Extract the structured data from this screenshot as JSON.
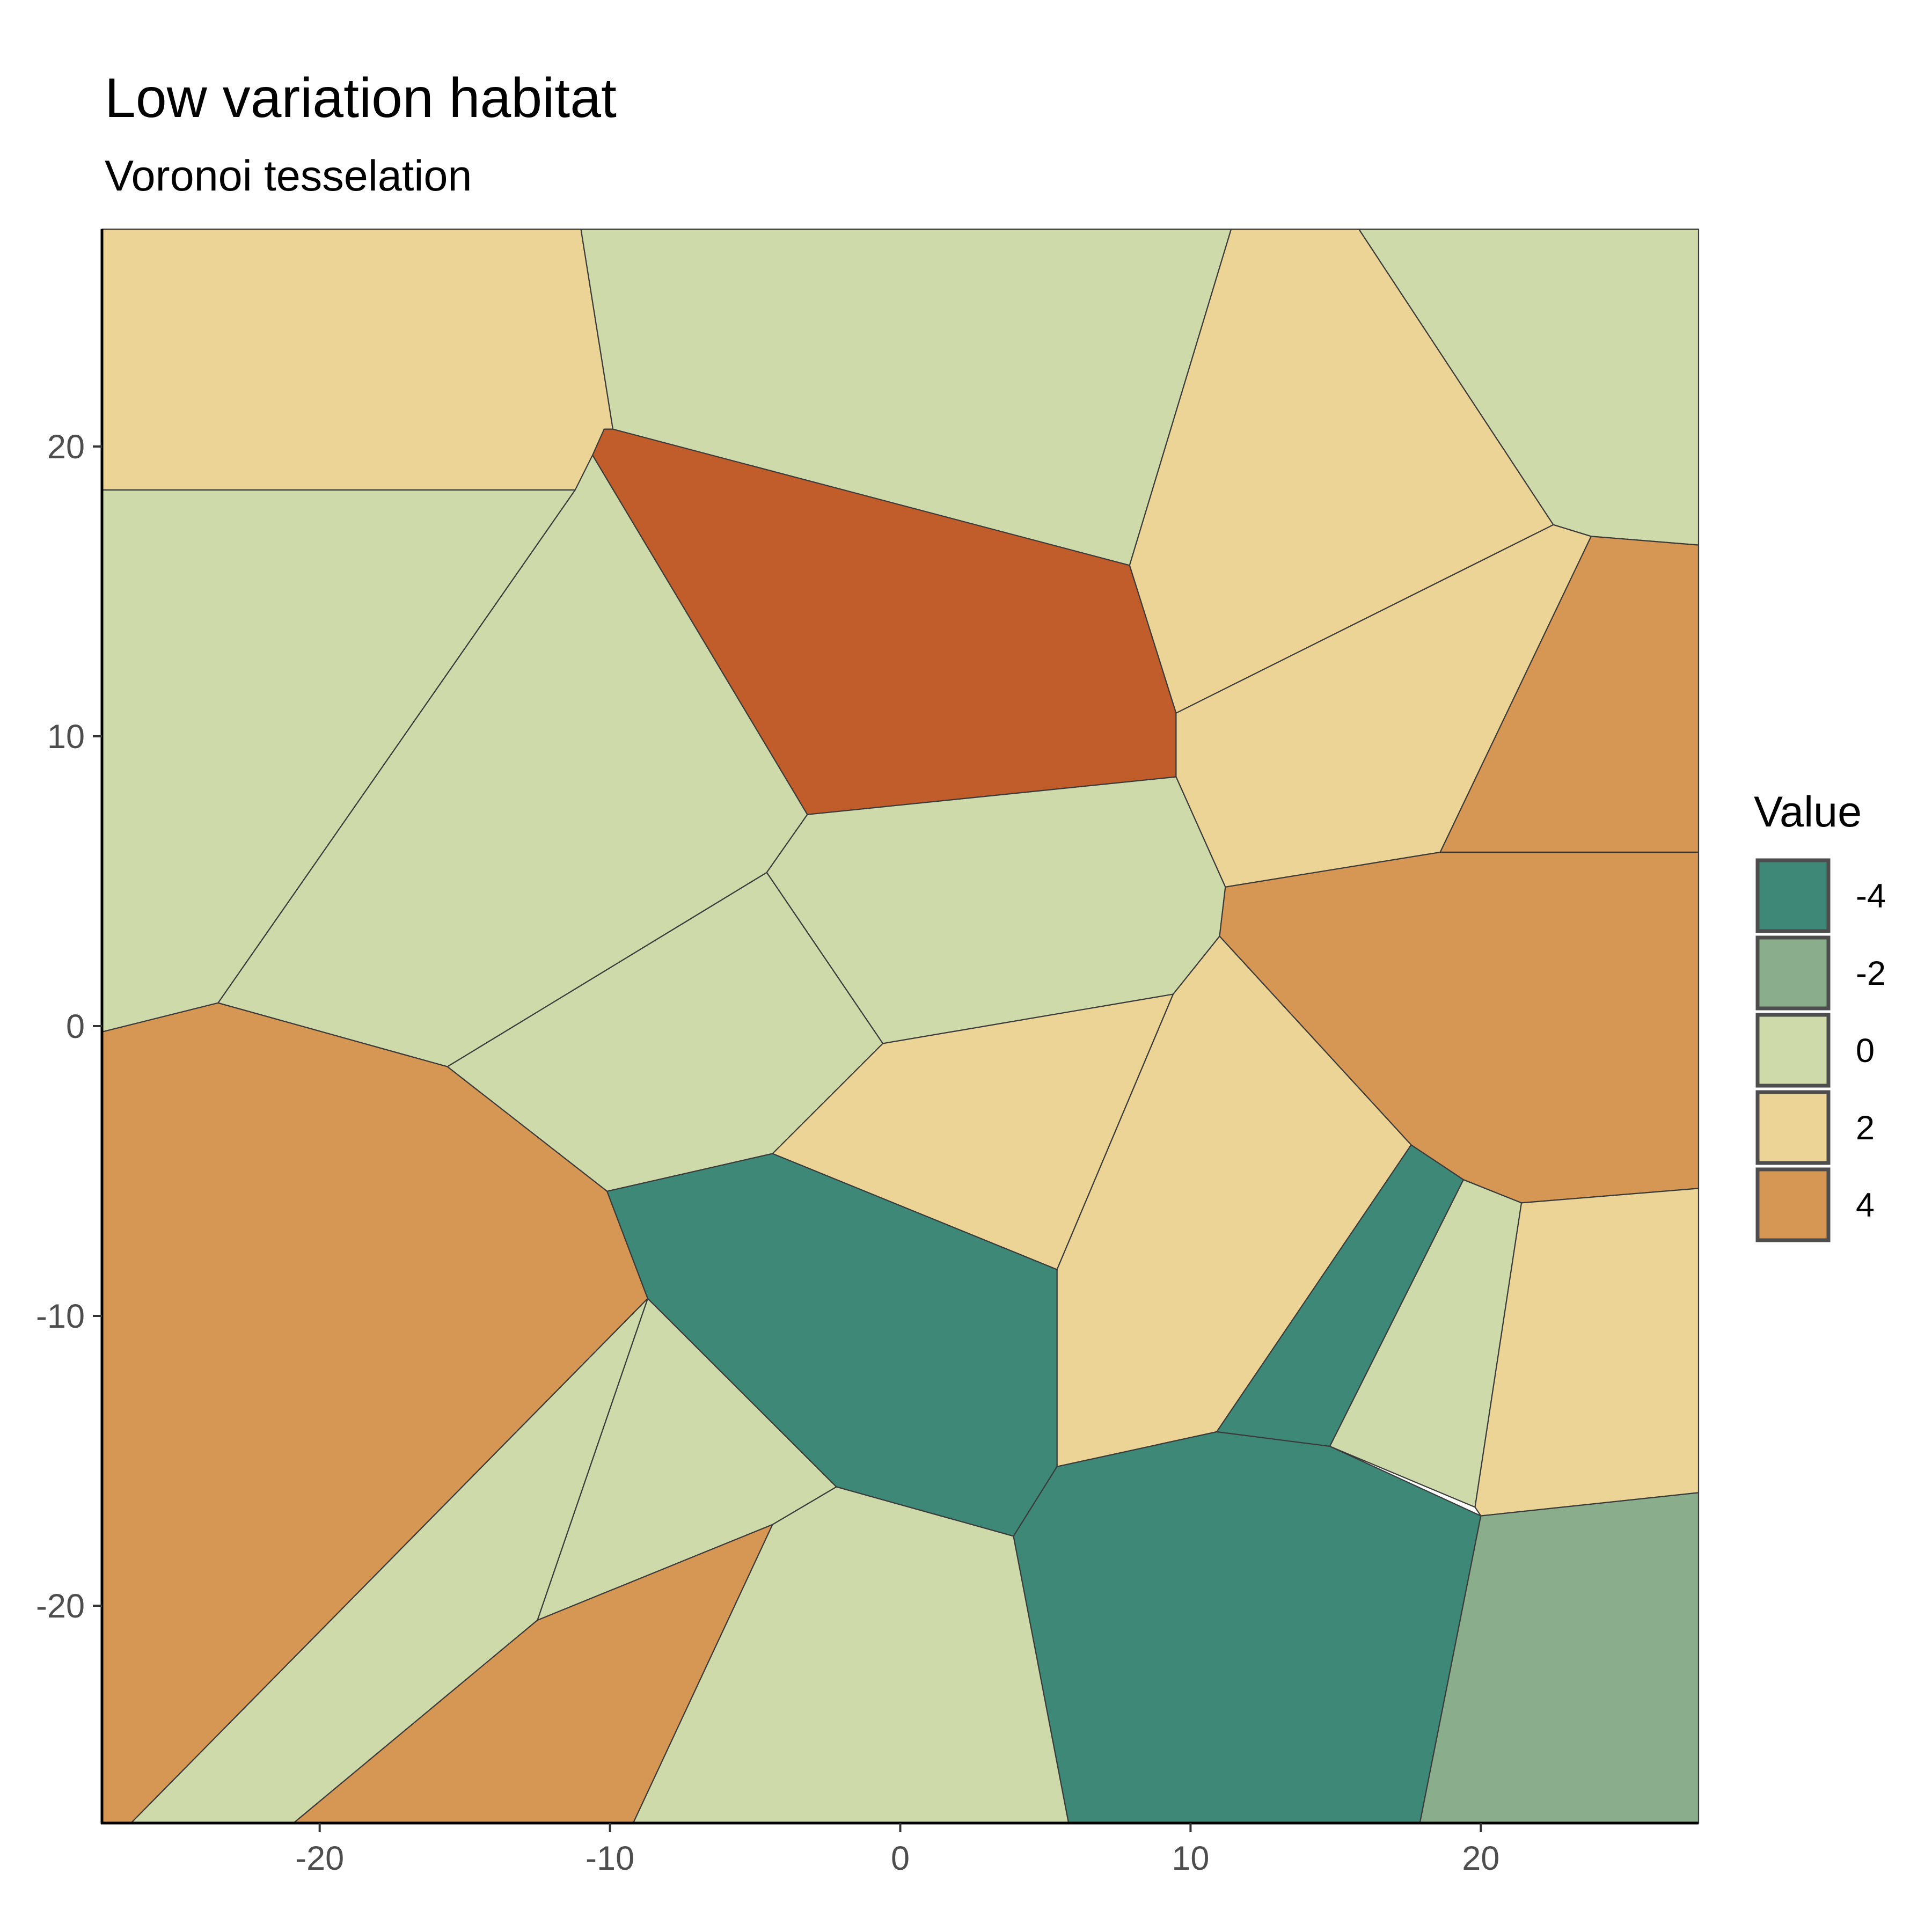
{
  "chart_data": {
    "type": "heatmap",
    "title": "Low variation habitat",
    "subtitle": "Voronoi tesselation",
    "xlim": [
      -27.5,
      27.5
    ],
    "ylim": [
      -27.5,
      27.5
    ],
    "x_ticks": [
      -20,
      -10,
      0,
      10,
      20
    ],
    "y_ticks": [
      -20,
      -10,
      0,
      10,
      20
    ],
    "x_tick_labels": [
      "-20",
      "-10",
      "0",
      "10",
      "20"
    ],
    "y_tick_labels": [
      "-20",
      "-10",
      "0",
      "10",
      "20"
    ],
    "grid": false,
    "legend": {
      "title": "Value",
      "position": "right",
      "entries": [
        {
          "value": -4,
          "label": "-4",
          "color": "#3e8878"
        },
        {
          "value": -2,
          "label": "-2",
          "color": "#8aad8c"
        },
        {
          "value": 0,
          "label": "0",
          "color": "#cfdaab"
        },
        {
          "value": 2,
          "label": "2",
          "color": "#ebd495"
        },
        {
          "value": 4,
          "label": "4",
          "color": "#d69654"
        }
      ]
    },
    "extra_colors": {
      "dark_red": "#c15d2b"
    },
    "cells": [
      {
        "value": 2,
        "color": "#ebd495",
        "points": [
          [
            -27.5,
            27.5
          ],
          [
            -11,
            27.5
          ],
          [
            -9.9,
            20.6
          ],
          [
            -11.2,
            18.5
          ],
          [
            -27.5,
            18.5
          ]
        ]
      },
      {
        "value": 0,
        "color": "#cfdaab",
        "points": [
          [
            -11,
            27.5
          ],
          [
            11.4,
            27.5
          ],
          [
            7.9,
            15.9
          ],
          [
            -10.2,
            20.6
          ],
          [
            -9.9,
            20.6
          ]
        ]
      },
      {
        "value": 2,
        "color": "#ebd495",
        "points": [
          [
            11.4,
            27.5
          ],
          [
            15.8,
            27.5
          ],
          [
            22.5,
            17.3
          ],
          [
            9.5,
            10.8
          ],
          [
            7.9,
            15.9
          ]
        ]
      },
      {
        "value": 0,
        "color": "#cfdaab",
        "points": [
          [
            15.8,
            27.5
          ],
          [
            27.5,
            27.5
          ],
          [
            27.5,
            16.6
          ],
          [
            23.8,
            16.9
          ],
          [
            22.5,
            17.3
          ]
        ]
      },
      {
        "value": 4,
        "color": "#c15d2b",
        "points": [
          [
            -9.9,
            20.6
          ],
          [
            -10.2,
            20.6
          ],
          [
            -10.6,
            19.7
          ],
          [
            -3.2,
            7.3
          ],
          [
            9.5,
            8.6
          ],
          [
            9.5,
            10.8
          ],
          [
            7.9,
            15.9
          ]
        ]
      },
      {
        "value": 0,
        "color": "#cfdaab",
        "points": [
          [
            -27.5,
            18.5
          ],
          [
            -11.2,
            18.5
          ],
          [
            -23.5,
            0.8
          ],
          [
            -27.5,
            -0.2
          ]
        ]
      },
      {
        "value": 0,
        "color": "#cfdaab",
        "points": [
          [
            -11.2,
            18.5
          ],
          [
            -10.6,
            19.7
          ],
          [
            -3.2,
            7.3
          ],
          [
            -4.6,
            5.3
          ],
          [
            -15.6,
            -1.4
          ],
          [
            -23.5,
            0.8
          ]
        ]
      },
      {
        "value": 2,
        "color": "#ebd495",
        "points": [
          [
            9.5,
            10.8
          ],
          [
            22.5,
            17.3
          ],
          [
            23.8,
            16.9
          ],
          [
            18.6,
            6.0
          ],
          [
            11.2,
            4.8
          ],
          [
            9.5,
            8.6
          ]
        ]
      },
      {
        "value": 4,
        "color": "#d69654",
        "points": [
          [
            23.8,
            16.9
          ],
          [
            27.5,
            16.6
          ],
          [
            27.5,
            6.0
          ],
          [
            18.6,
            6.0
          ]
        ]
      },
      {
        "value": 0,
        "color": "#cfdaab",
        "points": [
          [
            -3.2,
            7.3
          ],
          [
            9.5,
            8.6
          ],
          [
            11.2,
            4.8
          ],
          [
            11.0,
            3.1
          ],
          [
            9.4,
            1.1
          ],
          [
            -0.6,
            -0.6
          ],
          [
            -4.6,
            5.3
          ]
        ]
      },
      {
        "value": 0,
        "color": "#cfdaab",
        "points": [
          [
            -4.6,
            5.3
          ],
          [
            -0.6,
            -0.6
          ],
          [
            -4.4,
            -4.4
          ],
          [
            -10.1,
            -5.7
          ],
          [
            -15.6,
            -1.4
          ]
        ]
      },
      {
        "value": 4,
        "color": "#d69654",
        "points": [
          [
            11.2,
            4.8
          ],
          [
            18.6,
            6.0
          ],
          [
            27.5,
            6.0
          ],
          [
            27.5,
            -5.6
          ],
          [
            21.4,
            -6.1
          ],
          [
            19.4,
            -5.3
          ],
          [
            17.6,
            -4.1
          ],
          [
            11.0,
            3.1
          ]
        ]
      },
      {
        "value": 4,
        "color": "#d69654",
        "points": [
          [
            -27.5,
            -0.2
          ],
          [
            -23.5,
            0.8
          ],
          [
            -15.6,
            -1.4
          ],
          [
            -10.1,
            -5.7
          ],
          [
            -8.7,
            -9.4
          ],
          [
            -26.5,
            -27.5
          ],
          [
            -27.5,
            -27.5
          ]
        ]
      },
      {
        "value": 2,
        "color": "#ebd495",
        "points": [
          [
            -0.6,
            -0.6
          ],
          [
            9.4,
            1.1
          ],
          [
            5.4,
            -8.4
          ],
          [
            -4.4,
            -4.4
          ]
        ]
      },
      {
        "value": 2,
        "color": "#ebd495",
        "points": [
          [
            9.4,
            1.1
          ],
          [
            11.0,
            3.1
          ],
          [
            17.6,
            -4.1
          ],
          [
            10.9,
            -14.0
          ],
          [
            5.4,
            -15.2
          ],
          [
            5.4,
            -8.4
          ]
        ]
      },
      {
        "value": -4,
        "color": "#3e8878",
        "points": [
          [
            -10.1,
            -5.7
          ],
          [
            -4.4,
            -4.4
          ],
          [
            5.4,
            -8.4
          ],
          [
            5.4,
            -15.2
          ],
          [
            3.9,
            -17.6
          ],
          [
            -2.2,
            -15.9
          ],
          [
            -8.7,
            -9.4
          ]
        ]
      },
      {
        "value": -4,
        "color": "#3e8878",
        "points": [
          [
            17.6,
            -4.1
          ],
          [
            19.4,
            -5.3
          ],
          [
            14.8,
            -14.5
          ],
          [
            10.9,
            -14.0
          ]
        ]
      },
      {
        "value": 0,
        "color": "#cfdaab",
        "points": [
          [
            19.4,
            -5.3
          ],
          [
            21.4,
            -6.1
          ],
          [
            19.8,
            -16.6
          ],
          [
            14.8,
            -14.5
          ]
        ]
      },
      {
        "value": 2,
        "color": "#ebd495",
        "points": [
          [
            21.4,
            -6.1
          ],
          [
            27.5,
            -5.6
          ],
          [
            27.5,
            -16.1
          ],
          [
            20.0,
            -16.9
          ],
          [
            19.8,
            -16.6
          ]
        ]
      },
      {
        "value": 0,
        "color": "#cfdaab",
        "points": [
          [
            -8.7,
            -9.4
          ],
          [
            -2.2,
            -15.9
          ],
          [
            -4.4,
            -17.2
          ],
          [
            -12.5,
            -20.5
          ]
        ]
      },
      {
        "value": 0,
        "color": "#cfdaab",
        "points": [
          [
            -8.7,
            -9.4
          ],
          [
            -12.5,
            -20.5
          ],
          [
            -20.9,
            -27.5
          ],
          [
            -26.5,
            -27.5
          ]
        ]
      },
      {
        "value": 4,
        "color": "#d69654",
        "points": [
          [
            -12.5,
            -20.5
          ],
          [
            -4.4,
            -17.2
          ],
          [
            -9.2,
            -27.5
          ],
          [
            -20.9,
            -27.5
          ]
        ]
      },
      {
        "value": 0,
        "color": "#cfdaab",
        "points": [
          [
            -4.4,
            -17.2
          ],
          [
            -2.2,
            -15.9
          ],
          [
            3.9,
            -17.6
          ],
          [
            5.8,
            -27.5
          ],
          [
            -9.2,
            -27.5
          ]
        ]
      },
      {
        "value": -4,
        "color": "#3e8878",
        "points": [
          [
            3.9,
            -17.6
          ],
          [
            5.4,
            -15.2
          ],
          [
            10.9,
            -14.0
          ],
          [
            14.8,
            -14.5
          ],
          [
            20.0,
            -16.9
          ],
          [
            17.9,
            -27.5
          ],
          [
            5.8,
            -27.5
          ]
        ]
      },
      {
        "value": -2,
        "color": "#8aad8c",
        "points": [
          [
            20.0,
            -16.9
          ],
          [
            27.5,
            -16.1
          ],
          [
            27.5,
            -27.5
          ],
          [
            17.9,
            -27.5
          ]
        ]
      }
    ]
  }
}
